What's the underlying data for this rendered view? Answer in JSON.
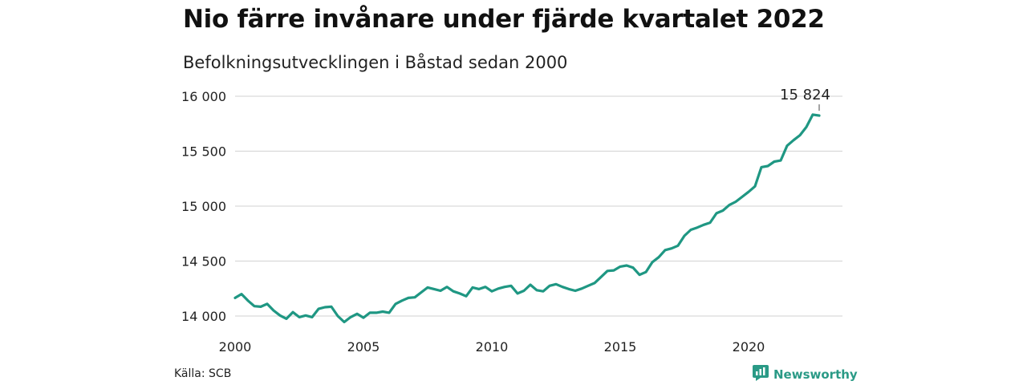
{
  "title": "Nio färre invånare under fjärde kvartalet 2022",
  "subtitle": "Befolkningsutvecklingen i Båstad sedan 2000",
  "source": "Källa: SCB",
  "brand": {
    "name": "Newsworthy",
    "icon": "newsworthy-logo-icon",
    "color": "#2a9a86"
  },
  "chart_data": {
    "type": "line",
    "title": "Nio färre invånare under fjärde kvartalet 2022",
    "subtitle": "Befolkningsutvecklingen i Båstad sedan 2000",
    "xlabel": "",
    "ylabel": "",
    "xlim": [
      2000,
      2023.25
    ],
    "ylim": [
      13950,
      16050
    ],
    "x_ticks": [
      2000,
      2005,
      2010,
      2015,
      2020
    ],
    "x_tick_labels": [
      "2000",
      "2005",
      "2010",
      "2015",
      "2020"
    ],
    "y_ticks": [
      14000,
      14500,
      15000,
      15500,
      16000
    ],
    "y_tick_labels": [
      "14 000",
      "14 500",
      "15 000",
      "15 500",
      "16 000"
    ],
    "grid": "horizontal",
    "line_color": "#1f9783",
    "annotation": {
      "text": "15 824",
      "x": 2022.75,
      "y": 15824
    },
    "series": [
      {
        "x": [
          2000.0,
          2000.25,
          2000.5,
          2000.75,
          2001.0,
          2001.25,
          2001.5,
          2001.75,
          2002.0,
          2002.25,
          2002.5,
          2002.75,
          2003.0,
          2003.25,
          2003.5,
          2003.75,
          2004.0,
          2004.25,
          2004.5,
          2004.75,
          2005.0,
          2005.25,
          2005.5,
          2005.75,
          2006.0,
          2006.25,
          2006.5,
          2006.75,
          2007.0,
          2007.25,
          2007.5,
          2007.75,
          2008.0,
          2008.25,
          2008.5,
          2008.75,
          2009.0,
          2009.25,
          2009.5,
          2009.75,
          2010.0,
          2010.25,
          2010.5,
          2010.75,
          2011.0,
          2011.25,
          2011.5,
          2011.75,
          2012.0,
          2012.25,
          2012.5,
          2012.75,
          2013.0,
          2013.25,
          2013.5,
          2013.75,
          2014.0,
          2014.25,
          2014.5,
          2014.75,
          2015.0,
          2015.25,
          2015.5,
          2015.75,
          2016.0,
          2016.25,
          2016.5,
          2016.75,
          2017.0,
          2017.25,
          2017.5,
          2017.75,
          2018.0,
          2018.25,
          2018.5,
          2018.75,
          2019.0,
          2019.25,
          2019.5,
          2019.75,
          2020.0,
          2020.25,
          2020.5,
          2020.75,
          2021.0,
          2021.25,
          2021.5,
          2021.75,
          2022.0,
          2022.25,
          2022.5,
          2022.75
        ],
        "values": [
          14165,
          14200,
          14140,
          14090,
          14085,
          14110,
          14050,
          14005,
          13975,
          14035,
          13990,
          14005,
          13990,
          14065,
          14080,
          14085,
          14000,
          13945,
          13990,
          14020,
          13985,
          14030,
          14030,
          14040,
          14030,
          14110,
          14140,
          14165,
          14170,
          14215,
          14260,
          14245,
          14230,
          14265,
          14225,
          14205,
          14180,
          14260,
          14245,
          14265,
          14225,
          14250,
          14265,
          14275,
          14205,
          14230,
          14285,
          14235,
          14225,
          14275,
          14290,
          14265,
          14245,
          14230,
          14250,
          14275,
          14300,
          14355,
          14410,
          14415,
          14450,
          14460,
          14440,
          14375,
          14400,
          14490,
          14535,
          14600,
          14615,
          14640,
          14730,
          14785,
          14805,
          14830,
          14850,
          14935,
          14960,
          15010,
          15040,
          15085,
          15130,
          15180,
          15355,
          15365,
          15405,
          15415,
          15550,
          15600,
          15645,
          15720,
          15833,
          15824
        ]
      }
    ]
  }
}
